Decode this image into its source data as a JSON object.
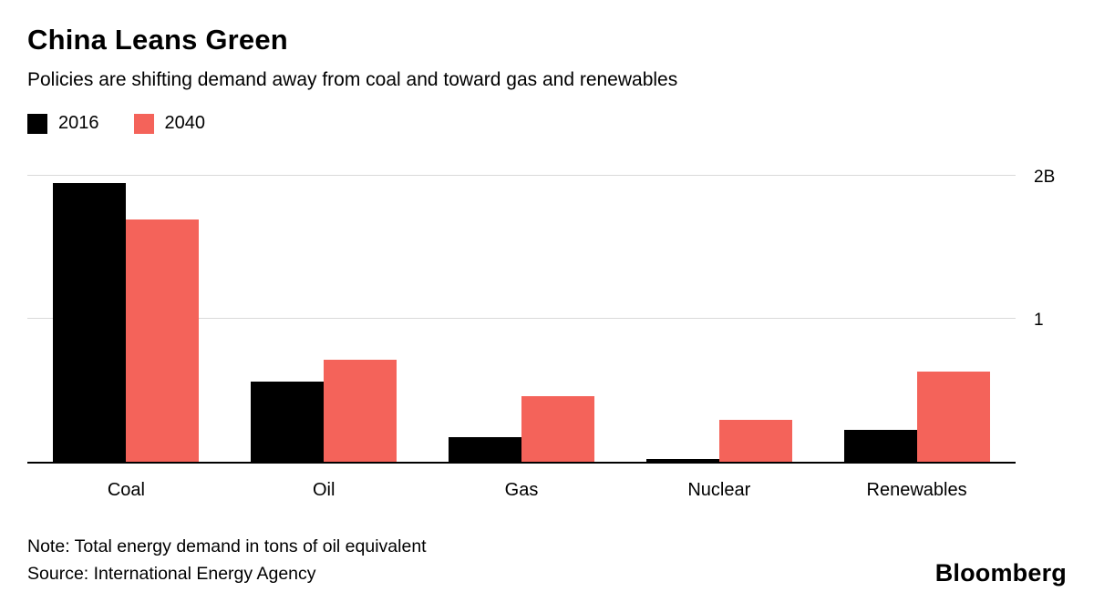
{
  "header": {
    "title": "China Leans Green",
    "subtitle": "Policies are shifting demand away from coal and toward gas and renewables"
  },
  "legend": {
    "items": [
      {
        "label": "2016",
        "color": "#000000"
      },
      {
        "label": "2040",
        "color": "#F4635A"
      }
    ]
  },
  "chart_data": {
    "type": "bar",
    "title": "China Leans Green",
    "subtitle": "Policies are shifting demand away from coal and toward gas and renewables",
    "categories": [
      "Coal",
      "Oil",
      "Gas",
      "Nuclear",
      "Renewables"
    ],
    "series": [
      {
        "name": "2016",
        "color": "#000000",
        "values": [
          1.95,
          0.56,
          0.17,
          0.02,
          0.22
        ]
      },
      {
        "name": "2040",
        "color": "#F4635A",
        "values": [
          1.69,
          0.71,
          0.46,
          0.29,
          0.63
        ]
      }
    ],
    "xlabel": "",
    "ylabel": "",
    "ylim": [
      0,
      2.1
    ],
    "yticks": [
      {
        "value": 2,
        "label": "2B"
      },
      {
        "value": 1,
        "label": "1"
      }
    ],
    "grid": "horizontal",
    "legend_position": "top-left"
  },
  "footer": {
    "note": "Note: Total energy demand in tons of oil equivalent",
    "source": "Source: International Energy Agency",
    "brand": "Bloomberg"
  }
}
